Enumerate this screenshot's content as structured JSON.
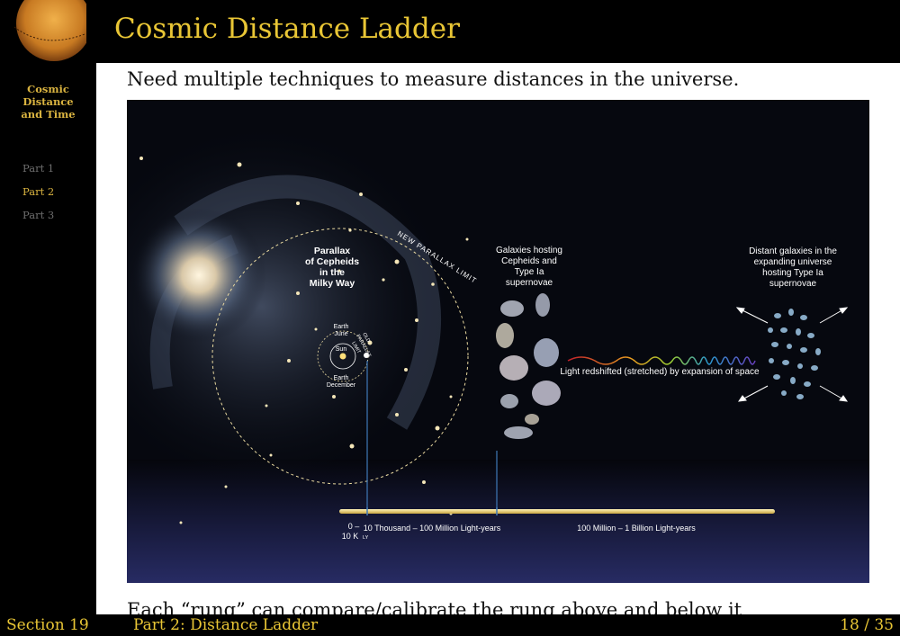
{
  "slide": {
    "title": "Cosmic Distance Ladder",
    "intro": "Need multiple techniques to measure distances in the universe.",
    "note": "Each “rung” can compare/calibrate the rung above and below it"
  },
  "sidebar": {
    "title": "Cosmic\nDistance\nand Time",
    "nav": [
      "Part 1",
      "Part 2",
      "Part 3"
    ]
  },
  "footer": {
    "section": "Section 19",
    "part": "Part 2:  Distance Ladder",
    "page": "18 / 35"
  },
  "figure": {
    "parallax_label": [
      "Parallax",
      "of Cepheids",
      "in the",
      "Milky Way"
    ],
    "new_parallax_limit": "NEW PARALLAX LIMIT",
    "old_parallax_limit": [
      "OLD",
      "PARALLAX",
      "LIMIT"
    ],
    "earth_june": [
      "Earth",
      "June"
    ],
    "sun": "Sun",
    "earth_december": [
      "Earth",
      "December"
    ],
    "galaxies_label": [
      "Galaxies hosting",
      "Cepheids and",
      "Type Ia",
      "supernovae"
    ],
    "distant_label": [
      "Distant galaxies in the",
      "expanding universe",
      "hosting Type Ia",
      "supernovae"
    ],
    "redshift_label": "Light redshifted (stretched) by expansion of space",
    "scale": {
      "zero": "0 –",
      "ten_k": "10 K",
      "ly": "LY",
      "range1": "10 Thousand – 100 Million Light-years",
      "range2": "100 Million – 1 Billion Light-years"
    }
  }
}
